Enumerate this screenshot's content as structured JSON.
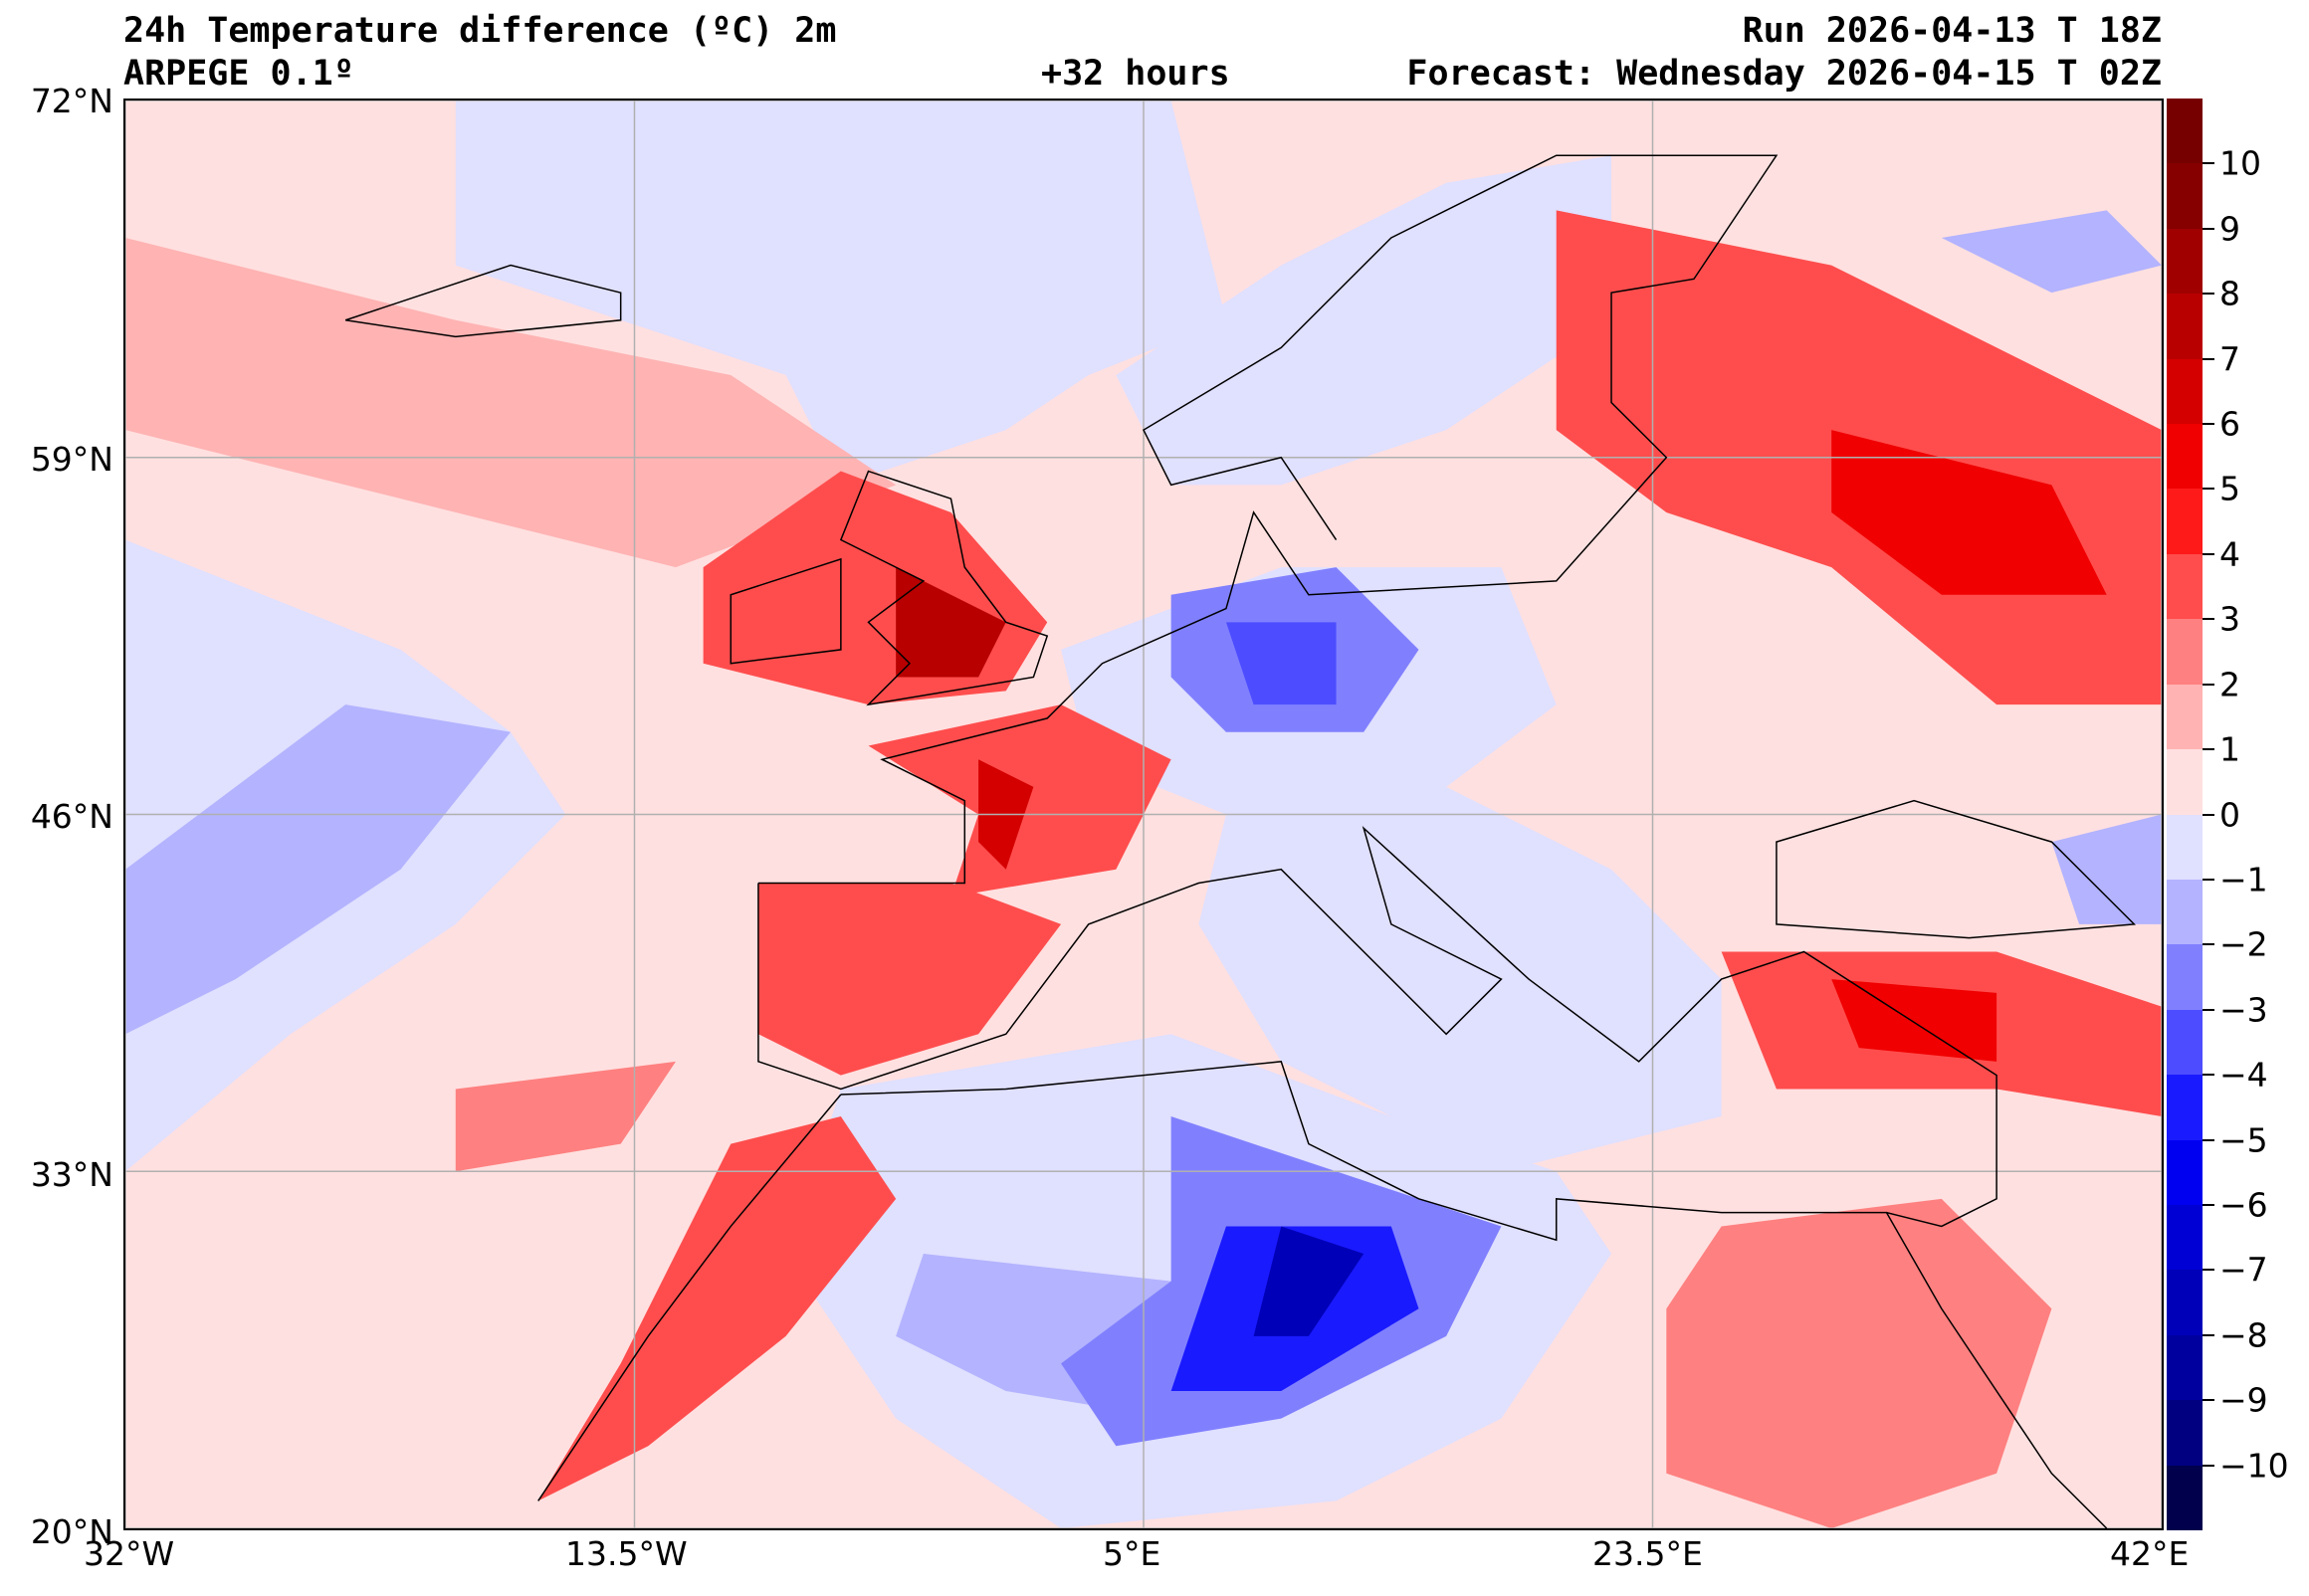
{
  "header": {
    "title": "24h Temperature difference (ºC) 2m",
    "model": "ARPEGE 0.1º",
    "run": "Run 2026-04-13 T 18Z",
    "lead": "+32 hours",
    "forecast": "Forecast: Wednesday 2026-04-15 T 02Z"
  },
  "axes": {
    "lat_labels": [
      "72°N",
      "59°N",
      "46°N",
      "33°N",
      "20°N"
    ],
    "lon_labels": [
      "32°W",
      "13.5°W",
      "5°E",
      "23.5°E",
      "42°E"
    ]
  },
  "map": {
    "lon_range": [
      -32,
      42
    ],
    "lat_range": [
      20,
      72
    ],
    "grid_lons": [
      -32,
      -13.5,
      5,
      23.5,
      42
    ],
    "grid_lats": [
      20,
      33,
      46,
      59,
      72
    ],
    "background_color": "#ffe0e0"
  },
  "colorbar": {
    "ticks": [
      "10",
      "9",
      "8",
      "7",
      "6",
      "5",
      "4",
      "3",
      "2",
      "1",
      "0",
      "−1",
      "−2",
      "−3",
      "−4",
      "−5",
      "−6",
      "−7",
      "−8",
      "−9",
      "−10"
    ],
    "colors": [
      "#760000",
      "#860000",
      "#a00000",
      "#b80000",
      "#d40000",
      "#f00000",
      "#ff1a1a",
      "#ff4d4d",
      "#ff8080",
      "#ffb3b3",
      "#ffe0e0",
      "#e0e0ff",
      "#b3b3ff",
      "#8080ff",
      "#4d4dff",
      "#1a1aff",
      "#0000f0",
      "#0000d4",
      "#0000b8",
      "#00009f",
      "#000080",
      "#00004d"
    ]
  }
}
